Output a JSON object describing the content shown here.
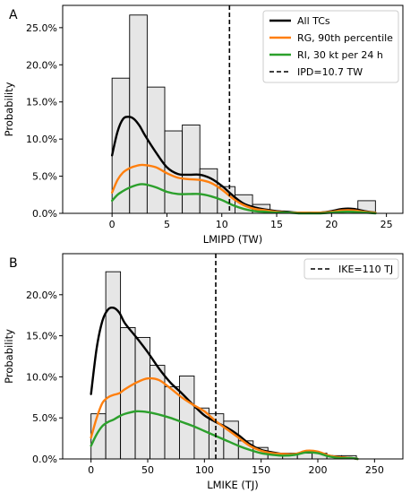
{
  "chart_data": [
    {
      "type": "histogram",
      "panel_label": "A",
      "xlabel": "LMIPD (TW)",
      "ylabel": "Probability",
      "xlim": [
        -4.5,
        26.5
      ],
      "ylim": [
        0,
        0.28
      ],
      "xticks": [
        0,
        5,
        10,
        15,
        20,
        25
      ],
      "xtick_labels": [
        "0",
        "5",
        "10",
        "15",
        "20",
        "25"
      ],
      "yticks": [
        0,
        0.05,
        0.1,
        0.15,
        0.2,
        0.25
      ],
      "ytick_labels": [
        "0.0%",
        "5.0%",
        "10.0%",
        "15.0%",
        "20.0%",
        "25.0%"
      ],
      "bar_edges": [
        0,
        1.6,
        3.2,
        4.8,
        6.4,
        8.0,
        9.6,
        11.2,
        12.8,
        14.4,
        16.0,
        17.6,
        19.2,
        20.8,
        22.4,
        24.0
      ],
      "bar_values": [
        0.182,
        0.267,
        0.17,
        0.111,
        0.119,
        0.06,
        0.036,
        0.025,
        0.012,
        0.0,
        0.0,
        0.0,
        0.0,
        0.0,
        0.017
      ],
      "bar_color": "#e6e6e6",
      "series": [
        {
          "name": "All TCs",
          "color": "#000000",
          "x": [
            0,
            0.5,
            1,
            1.5,
            2,
            2.5,
            3,
            4,
            5,
            6,
            7,
            8,
            9,
            10,
            11,
            12,
            13,
            14,
            15,
            16,
            17,
            18,
            19,
            20,
            21,
            22,
            23,
            24
          ],
          "y": [
            0.078,
            0.11,
            0.127,
            0.13,
            0.127,
            0.118,
            0.105,
            0.082,
            0.062,
            0.053,
            0.052,
            0.052,
            0.047,
            0.037,
            0.024,
            0.013,
            0.008,
            0.005,
            0.003,
            0.002,
            0.001,
            0.001,
            0.001,
            0.003,
            0.006,
            0.006,
            0.003,
            0.001
          ]
        },
        {
          "name": "RG, 90th percentile",
          "color": "#ff7f0e",
          "x": [
            0,
            0.5,
            1,
            1.5,
            2,
            2.5,
            3,
            4,
            5,
            6,
            7,
            8,
            9,
            10,
            11,
            12,
            13,
            14,
            15,
            16,
            17,
            18,
            19,
            20,
            21,
            22,
            23,
            24
          ],
          "y": [
            0.028,
            0.045,
            0.055,
            0.06,
            0.063,
            0.065,
            0.065,
            0.062,
            0.054,
            0.048,
            0.046,
            0.045,
            0.041,
            0.032,
            0.02,
            0.011,
            0.006,
            0.004,
            0.002,
            0.001,
            0.001,
            0.001,
            0.001,
            0.002,
            0.004,
            0.004,
            0.002,
            0.001
          ]
        },
        {
          "name": "RI, 30 kt per 24 h",
          "color": "#2ca02c",
          "x": [
            0,
            0.5,
            1,
            1.5,
            2,
            2.5,
            3,
            4,
            5,
            6,
            7,
            8,
            9,
            10,
            11,
            12,
            13,
            14,
            15,
            16,
            17,
            18,
            19,
            20,
            21,
            22,
            23,
            24
          ],
          "y": [
            0.017,
            0.025,
            0.03,
            0.034,
            0.037,
            0.039,
            0.039,
            0.035,
            0.029,
            0.026,
            0.026,
            0.026,
            0.023,
            0.018,
            0.011,
            0.006,
            0.003,
            0.002,
            0.001,
            0.001,
            0.0,
            0.0,
            0.0,
            0.001,
            0.002,
            0.002,
            0.001,
            0.0
          ]
        }
      ],
      "vline": {
        "x": 10.7,
        "label": "IPD=10.7 TW"
      },
      "legend": {
        "location": "top-right",
        "entries": [
          "All TCs",
          "RG, 90th percentile",
          "RI, 30 kt per 24 h",
          "IPD=10.7 TW"
        ]
      }
    },
    {
      "type": "histogram",
      "panel_label": "B",
      "xlabel": "LMIKE (TJ)",
      "ylabel": "Probability",
      "xlim": [
        -25,
        275
      ],
      "ylim": [
        0,
        0.25
      ],
      "xticks": [
        0,
        50,
        100,
        150,
        200,
        250
      ],
      "xtick_labels": [
        "0",
        "50",
        "100",
        "150",
        "200",
        "250"
      ],
      "yticks": [
        0,
        0.05,
        0.1,
        0.15,
        0.2
      ],
      "ytick_labels": [
        "0.0%",
        "5.0%",
        "10.0%",
        "15.0%",
        "20.0%"
      ],
      "bar_edges": [
        0,
        13,
        26,
        39,
        52,
        65,
        78,
        91,
        104,
        117,
        130,
        143,
        156,
        169,
        182,
        195,
        208,
        221,
        234
      ],
      "bar_values": [
        0.055,
        0.228,
        0.16,
        0.148,
        0.114,
        0.088,
        0.101,
        0.062,
        0.055,
        0.046,
        0.022,
        0.014,
        0.007,
        0.007,
        0.007,
        0.007,
        0.004,
        0.004
      ],
      "bar_color": "#e6e6e6",
      "series": [
        {
          "name": "All TCs",
          "color": "#000000",
          "x": [
            0,
            5,
            10,
            15,
            20,
            25,
            30,
            40,
            50,
            60,
            70,
            80,
            90,
            100,
            110,
            120,
            130,
            140,
            150,
            160,
            170,
            180,
            190,
            200,
            210,
            220,
            230,
            235
          ],
          "y": [
            0.079,
            0.135,
            0.168,
            0.182,
            0.184,
            0.178,
            0.165,
            0.148,
            0.13,
            0.11,
            0.093,
            0.08,
            0.066,
            0.053,
            0.045,
            0.038,
            0.029,
            0.018,
            0.011,
            0.008,
            0.006,
            0.006,
            0.009,
            0.008,
            0.004,
            0.002,
            0.001,
            0.0
          ]
        },
        {
          "name": "RG, 90th percentile",
          "color": "#ff7f0e",
          "x": [
            0,
            5,
            10,
            15,
            20,
            25,
            30,
            40,
            50,
            60,
            70,
            80,
            90,
            100,
            110,
            120,
            130,
            140,
            150,
            160,
            170,
            180,
            190,
            200,
            210,
            220,
            230,
            235
          ],
          "y": [
            0.026,
            0.05,
            0.068,
            0.075,
            0.078,
            0.08,
            0.085,
            0.093,
            0.098,
            0.096,
            0.086,
            0.075,
            0.066,
            0.058,
            0.046,
            0.036,
            0.026,
            0.016,
            0.01,
            0.007,
            0.006,
            0.006,
            0.01,
            0.009,
            0.004,
            0.002,
            0.001,
            0.0
          ]
        },
        {
          "name": "RI, 30 kt per 24 h",
          "color": "#2ca02c",
          "x": [
            0,
            5,
            10,
            15,
            20,
            25,
            30,
            40,
            50,
            60,
            70,
            80,
            90,
            100,
            110,
            120,
            130,
            140,
            150,
            160,
            170,
            180,
            190,
            200,
            210,
            220,
            230,
            235
          ],
          "y": [
            0.016,
            0.03,
            0.04,
            0.045,
            0.048,
            0.052,
            0.055,
            0.058,
            0.057,
            0.054,
            0.05,
            0.045,
            0.04,
            0.034,
            0.028,
            0.022,
            0.016,
            0.011,
            0.007,
            0.005,
            0.004,
            0.005,
            0.008,
            0.007,
            0.003,
            0.001,
            0.001,
            0.0
          ]
        }
      ],
      "vline": {
        "x": 110,
        "label": "IKE=110 TJ"
      },
      "legend": {
        "location": "top-right",
        "entries": [
          "IKE=110 TJ"
        ]
      }
    }
  ]
}
